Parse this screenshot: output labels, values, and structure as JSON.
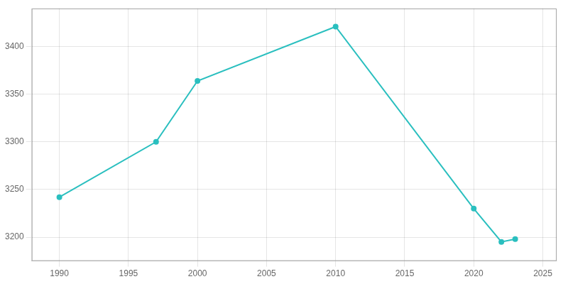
{
  "chart_data": {
    "type": "line",
    "x": [
      1990,
      1997,
      2000,
      2010,
      2020,
      2022,
      2023
    ],
    "values": [
      3242,
      3300,
      3364,
      3421,
      3230,
      3195,
      3198
    ],
    "color": "#2abfbf",
    "marker": "circle",
    "xlim": [
      1988,
      2026
    ],
    "ylim": [
      3175,
      3440
    ],
    "xticks": [
      1990,
      1995,
      2000,
      2005,
      2010,
      2015,
      2020,
      2025
    ],
    "yticks": [
      3200,
      3250,
      3300,
      3350,
      3400
    ],
    "grid": true
  }
}
